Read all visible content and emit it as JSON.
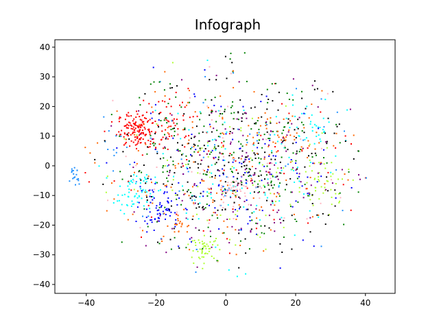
{
  "chart_data": {
    "type": "scatter",
    "title": "Infograph",
    "xlabel": "",
    "ylabel": "",
    "xlim": [
      -49,
      48.5
    ],
    "ylim": [
      -43,
      42.5
    ],
    "xticks": [
      -40,
      -20,
      0,
      20,
      40
    ],
    "yticks": [
      -40,
      -30,
      -20,
      -10,
      0,
      10,
      20,
      30,
      40
    ],
    "xtick_labels": [
      "−40",
      "−20",
      "0",
      "20",
      "40"
    ],
    "ytick_labels": [
      "−40",
      "−30",
      "−20",
      "−10",
      "0",
      "10",
      "20",
      "30",
      "40"
    ],
    "grid": false,
    "legend": "none",
    "point_count_approx": 2000,
    "series": [
      {
        "color": "#ff0000",
        "clusters": [
          {
            "cx": -25,
            "cy": 12,
            "sx": 3,
            "sy": 3,
            "n": 150
          },
          {
            "cx": -15,
            "cy": 16,
            "sx": 3,
            "sy": 5,
            "n": 40
          }
        ],
        "spread": {
          "cx": 0,
          "cy": 0,
          "sx": 20,
          "sy": 15,
          "n": 70
        }
      },
      {
        "color": "#00ffff",
        "clusters": [
          {
            "cx": -26,
            "cy": -9,
            "sx": 3,
            "sy": 3,
            "n": 60
          },
          {
            "cx": 24,
            "cy": 13,
            "sx": 4,
            "sy": 4,
            "n": 30
          }
        ],
        "spread": {
          "cx": 2,
          "cy": -3,
          "sx": 18,
          "sy": 13,
          "n": 100
        }
      },
      {
        "color": "#0000ff",
        "clusters": [
          {
            "cx": -19,
            "cy": -15,
            "sx": 3,
            "sy": 3,
            "n": 60
          }
        ],
        "spread": {
          "cx": 3,
          "cy": -4,
          "sx": 16,
          "sy": 13,
          "n": 120
        }
      },
      {
        "color": "#1e90ff",
        "clusters": [
          {
            "cx": -43.5,
            "cy": -4,
            "sx": 0.7,
            "sy": 1.8,
            "n": 18
          },
          {
            "cx": -33,
            "cy": 6,
            "sx": 2,
            "sy": 4,
            "n": 10
          }
        ],
        "spread": {
          "cx": 0,
          "cy": 0,
          "sx": 20,
          "sy": 15,
          "n": 60
        }
      },
      {
        "color": "#adff2f",
        "clusters": [
          {
            "cx": -6,
            "cy": -28,
            "sx": 2,
            "sy": 2,
            "n": 50
          },
          {
            "cx": 28,
            "cy": -6,
            "sx": 4,
            "sy": 4,
            "n": 40
          }
        ],
        "spread": {
          "cx": 5,
          "cy": -2,
          "sx": 18,
          "sy": 13,
          "n": 80
        }
      },
      {
        "color": "#ffb6c1",
        "clusters": [
          {
            "cx": 2,
            "cy": -7,
            "sx": 2,
            "sy": 2,
            "n": 40
          }
        ],
        "spread": {
          "cx": 5,
          "cy": 0,
          "sx": 18,
          "sy": 14,
          "n": 60
        }
      },
      {
        "color": "#000000",
        "clusters": [],
        "spread": {
          "cx": 3,
          "cy": 0,
          "sx": 17,
          "sy": 14,
          "n": 230
        }
      },
      {
        "color": "#008000",
        "clusters": [],
        "spread": {
          "cx": 0,
          "cy": 2,
          "sx": 18,
          "sy": 15,
          "n": 220
        }
      },
      {
        "color": "#ff6600",
        "clusters": [
          {
            "cx": -13,
            "cy": -20,
            "sx": 1.5,
            "sy": 1.5,
            "n": 15
          },
          {
            "cx": 18,
            "cy": 10,
            "sx": 4,
            "sy": 4,
            "n": 30
          }
        ],
        "spread": {
          "cx": 0,
          "cy": 0,
          "sx": 19,
          "sy": 15,
          "n": 150
        }
      },
      {
        "color": "#800080",
        "clusters": [],
        "spread": {
          "cx": 5,
          "cy": -3,
          "sx": 16,
          "sy": 13,
          "n": 150
        }
      }
    ]
  }
}
